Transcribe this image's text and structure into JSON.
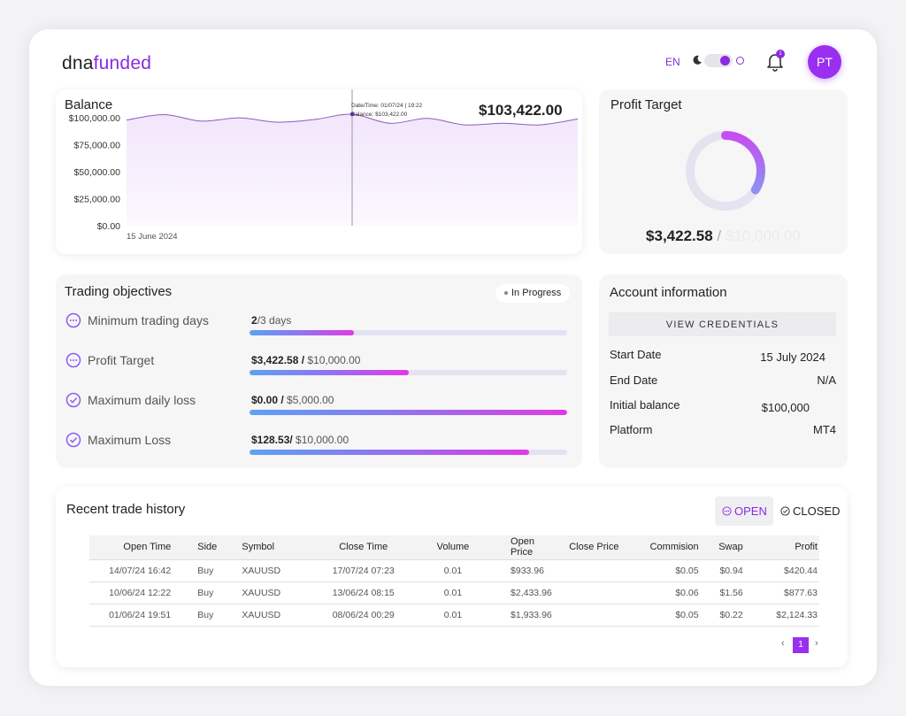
{
  "header": {
    "logo_dark": "dna",
    "logo_light": "funded",
    "language": "EN",
    "notification_count": "1",
    "avatar_initials": "PT"
  },
  "balance": {
    "title": "Balance",
    "amount": "$103,422.00",
    "tooltip_line1": "Date/Time: 01/07/24 | 19:22",
    "tooltip_line2": "Balance: $103,422.00",
    "chart_data": {
      "type": "area",
      "title": "Balance",
      "x_label_shown": "15 June 2024",
      "y_ticks": [
        "$100,000.00",
        "$75,000.00",
        "$50,000.00",
        "$25,000.00",
        "$0.00"
      ],
      "y_tick_values": [
        100000,
        75000,
        50000,
        25000,
        0
      ],
      "ylim": [
        0,
        110000
      ],
      "values": [
        98000,
        103000,
        97000,
        100000,
        96000,
        98500,
        103422,
        95000,
        99500,
        93500,
        95000,
        93500,
        99000
      ],
      "marker_index": 6,
      "line_color": "#8f5bbf",
      "fill_color": "#f2e6fb"
    }
  },
  "profit_target": {
    "title": "Profit Target",
    "current": "$3,422.58",
    "separator": "/",
    "target": "$10,000.00",
    "progress_fraction": 0.34
  },
  "objectives": {
    "title": "Trading objectives",
    "status_badge": "In Progress",
    "items": [
      {
        "label": "Minimum trading days",
        "value": "2",
        "total": "/3 days",
        "fraction": 0.33,
        "icon": "dots-circle-icon"
      },
      {
        "label": "Profit Target",
        "value": "$3,422.58 /",
        "total": " $10,000.00",
        "fraction": 0.5,
        "icon": "dots-circle-icon"
      },
      {
        "label": "Maximum daily loss",
        "value": "$0.00 /",
        "total": " $5,000.00",
        "fraction": 1.0,
        "icon": "check-circle-icon"
      },
      {
        "label": "Maximum Loss",
        "value": "$128.53/",
        "total": " $10,000.00",
        "fraction": 0.88,
        "icon": "check-circle-icon"
      }
    ]
  },
  "account": {
    "title": "Account information",
    "credentials_button": "VIEW CREDENTIALS",
    "rows": [
      {
        "key": "Start Date",
        "value": "15 July 2024"
      },
      {
        "key": "End Date",
        "value": "N/A"
      },
      {
        "key": "Initial balance",
        "value": "$100,000"
      },
      {
        "key": "Platform",
        "value": "MT4"
      }
    ]
  },
  "history": {
    "title": "Recent trade history",
    "tab_open": "OPEN",
    "tab_closed": "CLOSED",
    "columns": [
      "Open Time",
      "Side",
      "Symbol",
      "Close Time",
      "Volume",
      "Open Price",
      "Close Price",
      "Commision",
      "Swap",
      "Profit"
    ],
    "rows": [
      [
        "14/07/24 16:42",
        "Buy",
        "XAUUSD",
        "17/07/24 07:23",
        "0.01",
        "$933.96",
        "",
        "$0.05",
        "$0.94",
        "$420.44"
      ],
      [
        "10/06/24 12:22",
        "Buy",
        "XAUUSD",
        "13/06/24 08:15",
        "0.01",
        "$2,433.96",
        "",
        "$0.06",
        "$1.56",
        "$877.63"
      ],
      [
        "01/06/24 19:51",
        "Buy",
        "XAUUSD",
        "08/06/24 00:29",
        "0.01",
        "$1,933.96",
        "",
        "$0.05",
        "$0.22",
        "$2,124.33"
      ]
    ],
    "page": "1"
  }
}
